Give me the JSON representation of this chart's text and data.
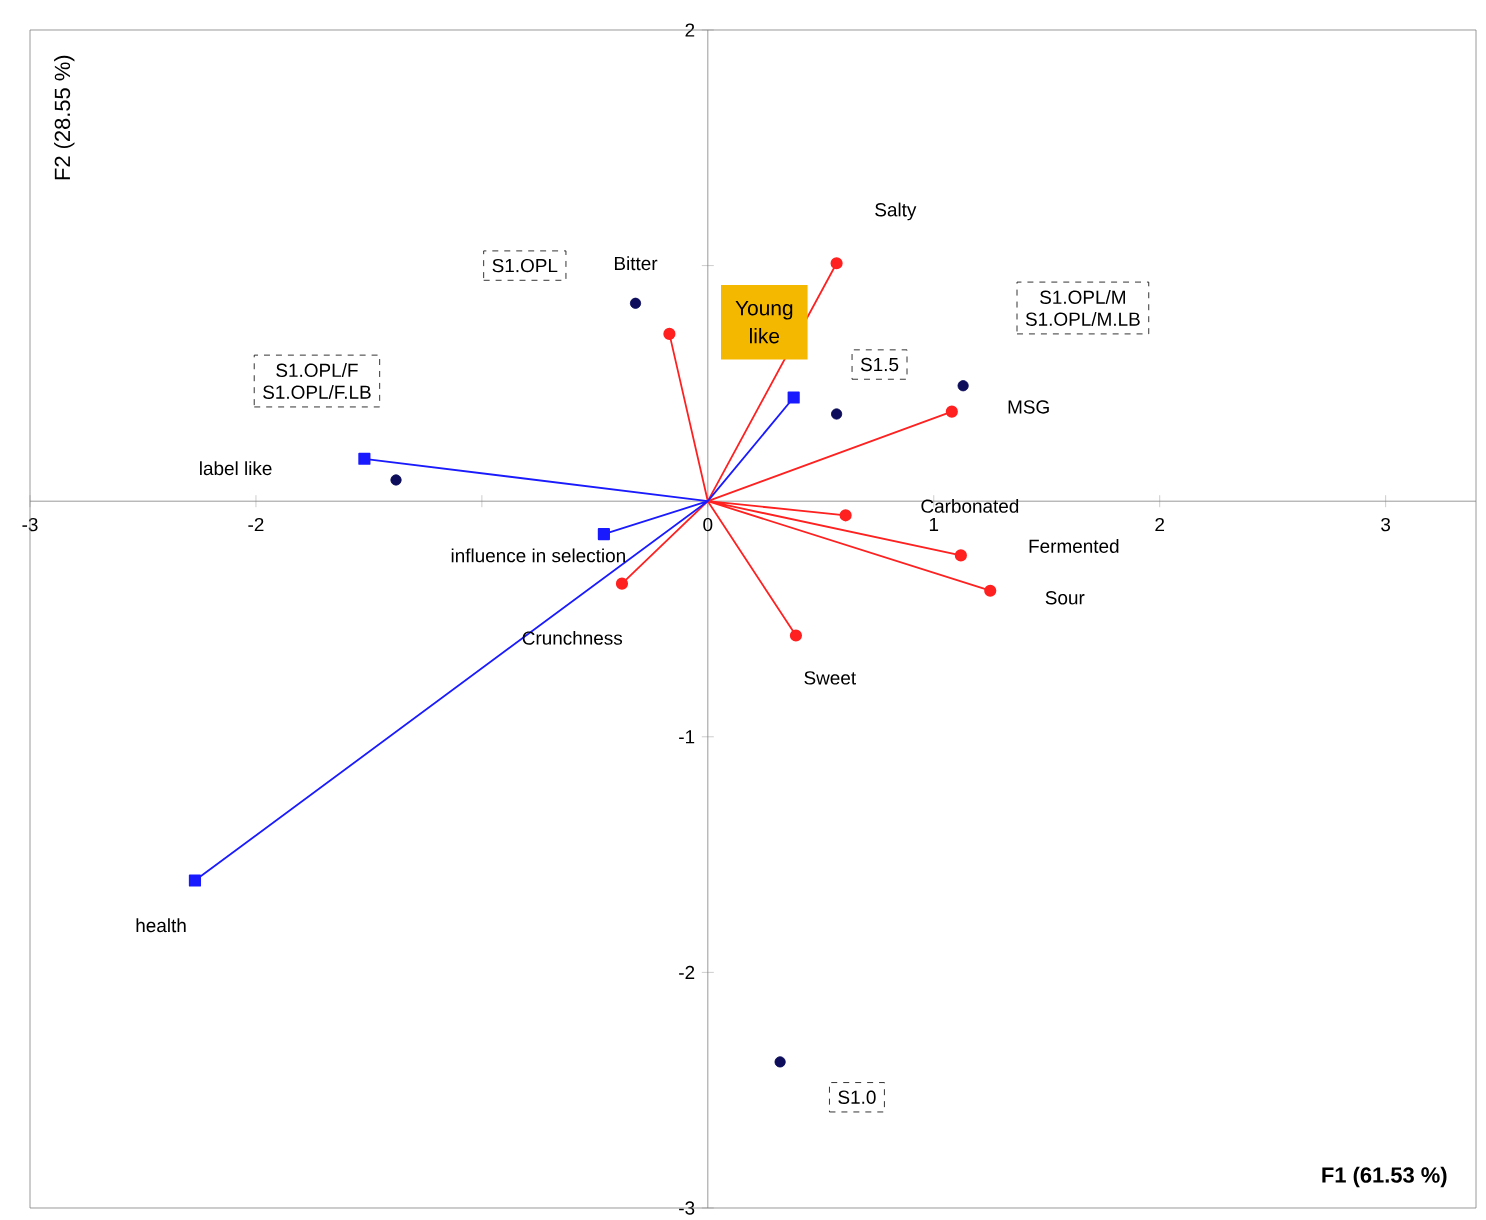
{
  "chart_data": {
    "type": "scatter",
    "xlabel": "F1 (61.53 %)",
    "ylabel": "F2 (28.55 %)",
    "xlim": [
      -3,
      3.4
    ],
    "ylim": [
      -3,
      2
    ],
    "xticks": [
      -3,
      -2,
      {
        "value": -1,
        "label": null
      },
      0,
      1,
      2,
      3
    ],
    "yticks": [
      -3,
      -2,
      -1,
      {
        "value": 1,
        "label": null
      },
      2
    ],
    "series": [
      {
        "type": "scatter",
        "color": "#0d0d5c",
        "marker": "circle",
        "x": [
          -0.32,
          -1.38,
          0.57,
          1.13,
          0.32
        ],
        "values": [
          0.84,
          0.09,
          0.37,
          0.49,
          -2.38
        ]
      },
      {
        "type": "line",
        "color": "#ff2020",
        "marker": "circle",
        "x": [
          0,
          -0.17,
          null,
          0,
          0.57,
          null,
          0,
          1.08,
          null,
          0,
          0.61,
          null,
          0,
          1.12,
          null,
          0,
          1.25,
          null,
          0,
          0.39,
          null,
          0,
          -0.38
        ],
        "values": [
          0,
          0.71,
          null,
          0,
          1.01,
          null,
          0,
          0.38,
          null,
          0,
          -0.06,
          null,
          0,
          -0.23,
          null,
          0,
          -0.38,
          null,
          0,
          -0.57,
          null,
          0,
          -0.35
        ]
      },
      {
        "type": "line",
        "color": "#1a1aff",
        "marker": "square",
        "x": [
          0,
          -1.52,
          null,
          0,
          -0.46,
          null,
          0,
          0.38,
          null,
          0,
          -2.27
        ],
        "values": [
          0,
          0.18,
          null,
          0,
          -0.14,
          null,
          0,
          0.44,
          null,
          0,
          -1.61
        ]
      }
    ],
    "annotations": [
      "S1.OPL",
      "S1.OPL/F S1.OPL/F.LB",
      "S1.5",
      "S1.OPL/M S1.OPL/M.LB",
      "S1.0",
      "Young like",
      "Bitter",
      "Salty",
      "MSG",
      "Carbonated",
      "Fermented",
      "Sour",
      "Sweet",
      "Crunchness",
      "label like",
      "influence in selection",
      "health"
    ]
  }
}
